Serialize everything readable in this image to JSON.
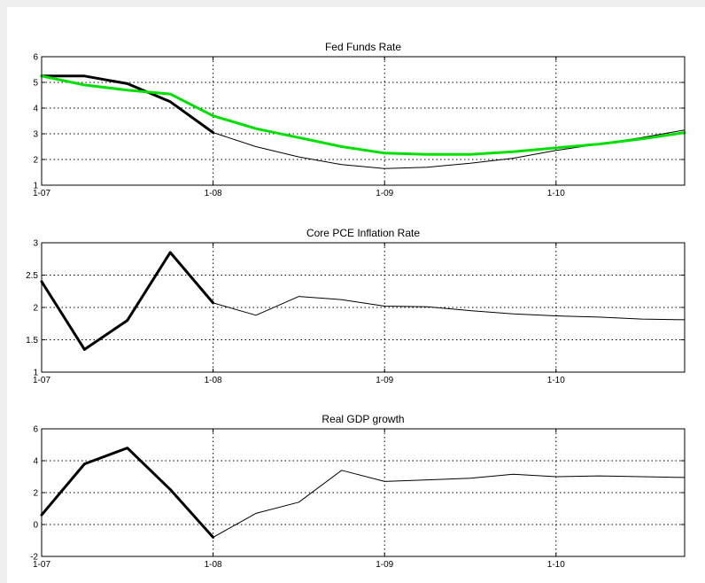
{
  "chart_data": [
    {
      "type": "line",
      "title": "Fed Funds Rate",
      "xlabel": "",
      "ylabel": "",
      "x_ticks": [
        "1-07",
        "1-08",
        "1-09",
        "1-10"
      ],
      "xlim": [
        2007.0,
        2010.75
      ],
      "ylim": [
        1,
        6
      ],
      "y_ticks": [
        "1",
        "2",
        "3",
        "4",
        "5",
        "6"
      ],
      "grid": true,
      "series": [
        {
          "color": "#000000",
          "width": 1,
          "x": [
            2007.0,
            2007.25,
            2007.5,
            2007.75,
            2008.0,
            2008.25,
            2008.5,
            2008.75,
            2009.0,
            2009.25,
            2009.5,
            2009.75,
            2010.0,
            2010.25,
            2010.5,
            2010.75
          ],
          "y": [
            5.25,
            5.25,
            4.95,
            4.25,
            3.05,
            2.5,
            2.1,
            1.8,
            1.65,
            1.7,
            1.85,
            2.05,
            2.35,
            2.6,
            2.85,
            3.15
          ]
        },
        {
          "color": "#000000",
          "width": 3,
          "x": [
            2007.0,
            2007.25,
            2007.5,
            2007.75,
            2008.0
          ],
          "y": [
            5.25,
            5.25,
            4.95,
            4.25,
            3.05
          ]
        },
        {
          "color": "#00e000",
          "width": 3,
          "x": [
            2007.0,
            2007.25,
            2007.5,
            2007.75,
            2008.0,
            2008.25,
            2008.5,
            2008.75,
            2009.0,
            2009.25,
            2009.5,
            2009.75,
            2010.0,
            2010.25,
            2010.5,
            2010.75
          ],
          "y": [
            5.25,
            4.9,
            4.7,
            4.55,
            3.7,
            3.2,
            2.85,
            2.5,
            2.25,
            2.2,
            2.2,
            2.3,
            2.45,
            2.6,
            2.8,
            3.05
          ]
        }
      ]
    },
    {
      "type": "line",
      "title": "Core PCE Inflation Rate",
      "xlabel": "",
      "ylabel": "",
      "x_ticks": [
        "1-07",
        "1-08",
        "1-09",
        "1-10"
      ],
      "xlim": [
        2007.0,
        2010.75
      ],
      "ylim": [
        1,
        3
      ],
      "y_ticks": [
        "1",
        "1.5",
        "2",
        "2.5",
        "3"
      ],
      "grid": true,
      "series": [
        {
          "color": "#000000",
          "width": 1,
          "x": [
            2007.0,
            2007.25,
            2007.5,
            2007.75,
            2008.0,
            2008.25,
            2008.5,
            2008.75,
            2009.0,
            2009.25,
            2009.5,
            2009.75,
            2010.0,
            2010.25,
            2010.5,
            2010.75
          ],
          "y": [
            2.4,
            1.35,
            1.8,
            2.85,
            2.07,
            1.88,
            2.17,
            2.12,
            2.02,
            2.01,
            1.95,
            1.9,
            1.87,
            1.85,
            1.82,
            1.81
          ]
        },
        {
          "color": "#000000",
          "width": 3,
          "x": [
            2007.0,
            2007.25,
            2007.5,
            2007.75,
            2008.0
          ],
          "y": [
            2.4,
            1.35,
            1.8,
            2.85,
            2.07
          ]
        }
      ]
    },
    {
      "type": "line",
      "title": "Real GDP growth",
      "xlabel": "",
      "ylabel": "",
      "x_ticks": [
        "1-07",
        "1-08",
        "1-09",
        "1-10"
      ],
      "xlim": [
        2007.0,
        2010.75
      ],
      "ylim": [
        -2,
        6
      ],
      "y_ticks": [
        "-2",
        "0",
        "2",
        "4",
        "6"
      ],
      "grid": true,
      "series": [
        {
          "color": "#000000",
          "width": 1,
          "x": [
            2007.0,
            2007.25,
            2007.5,
            2007.75,
            2008.0,
            2008.25,
            2008.5,
            2008.75,
            2009.0,
            2009.25,
            2009.5,
            2009.75,
            2010.0,
            2010.25,
            2010.5,
            2010.75
          ],
          "y": [
            0.6,
            3.8,
            4.8,
            2.2,
            -0.8,
            0.7,
            1.4,
            3.4,
            2.7,
            2.8,
            2.9,
            3.15,
            3.0,
            3.05,
            3.0,
            2.95
          ]
        },
        {
          "color": "#000000",
          "width": 3,
          "x": [
            2007.0,
            2007.25,
            2007.5,
            2007.75,
            2008.0
          ],
          "y": [
            0.6,
            3.8,
            4.8,
            2.2,
            -0.8
          ]
        }
      ]
    }
  ]
}
